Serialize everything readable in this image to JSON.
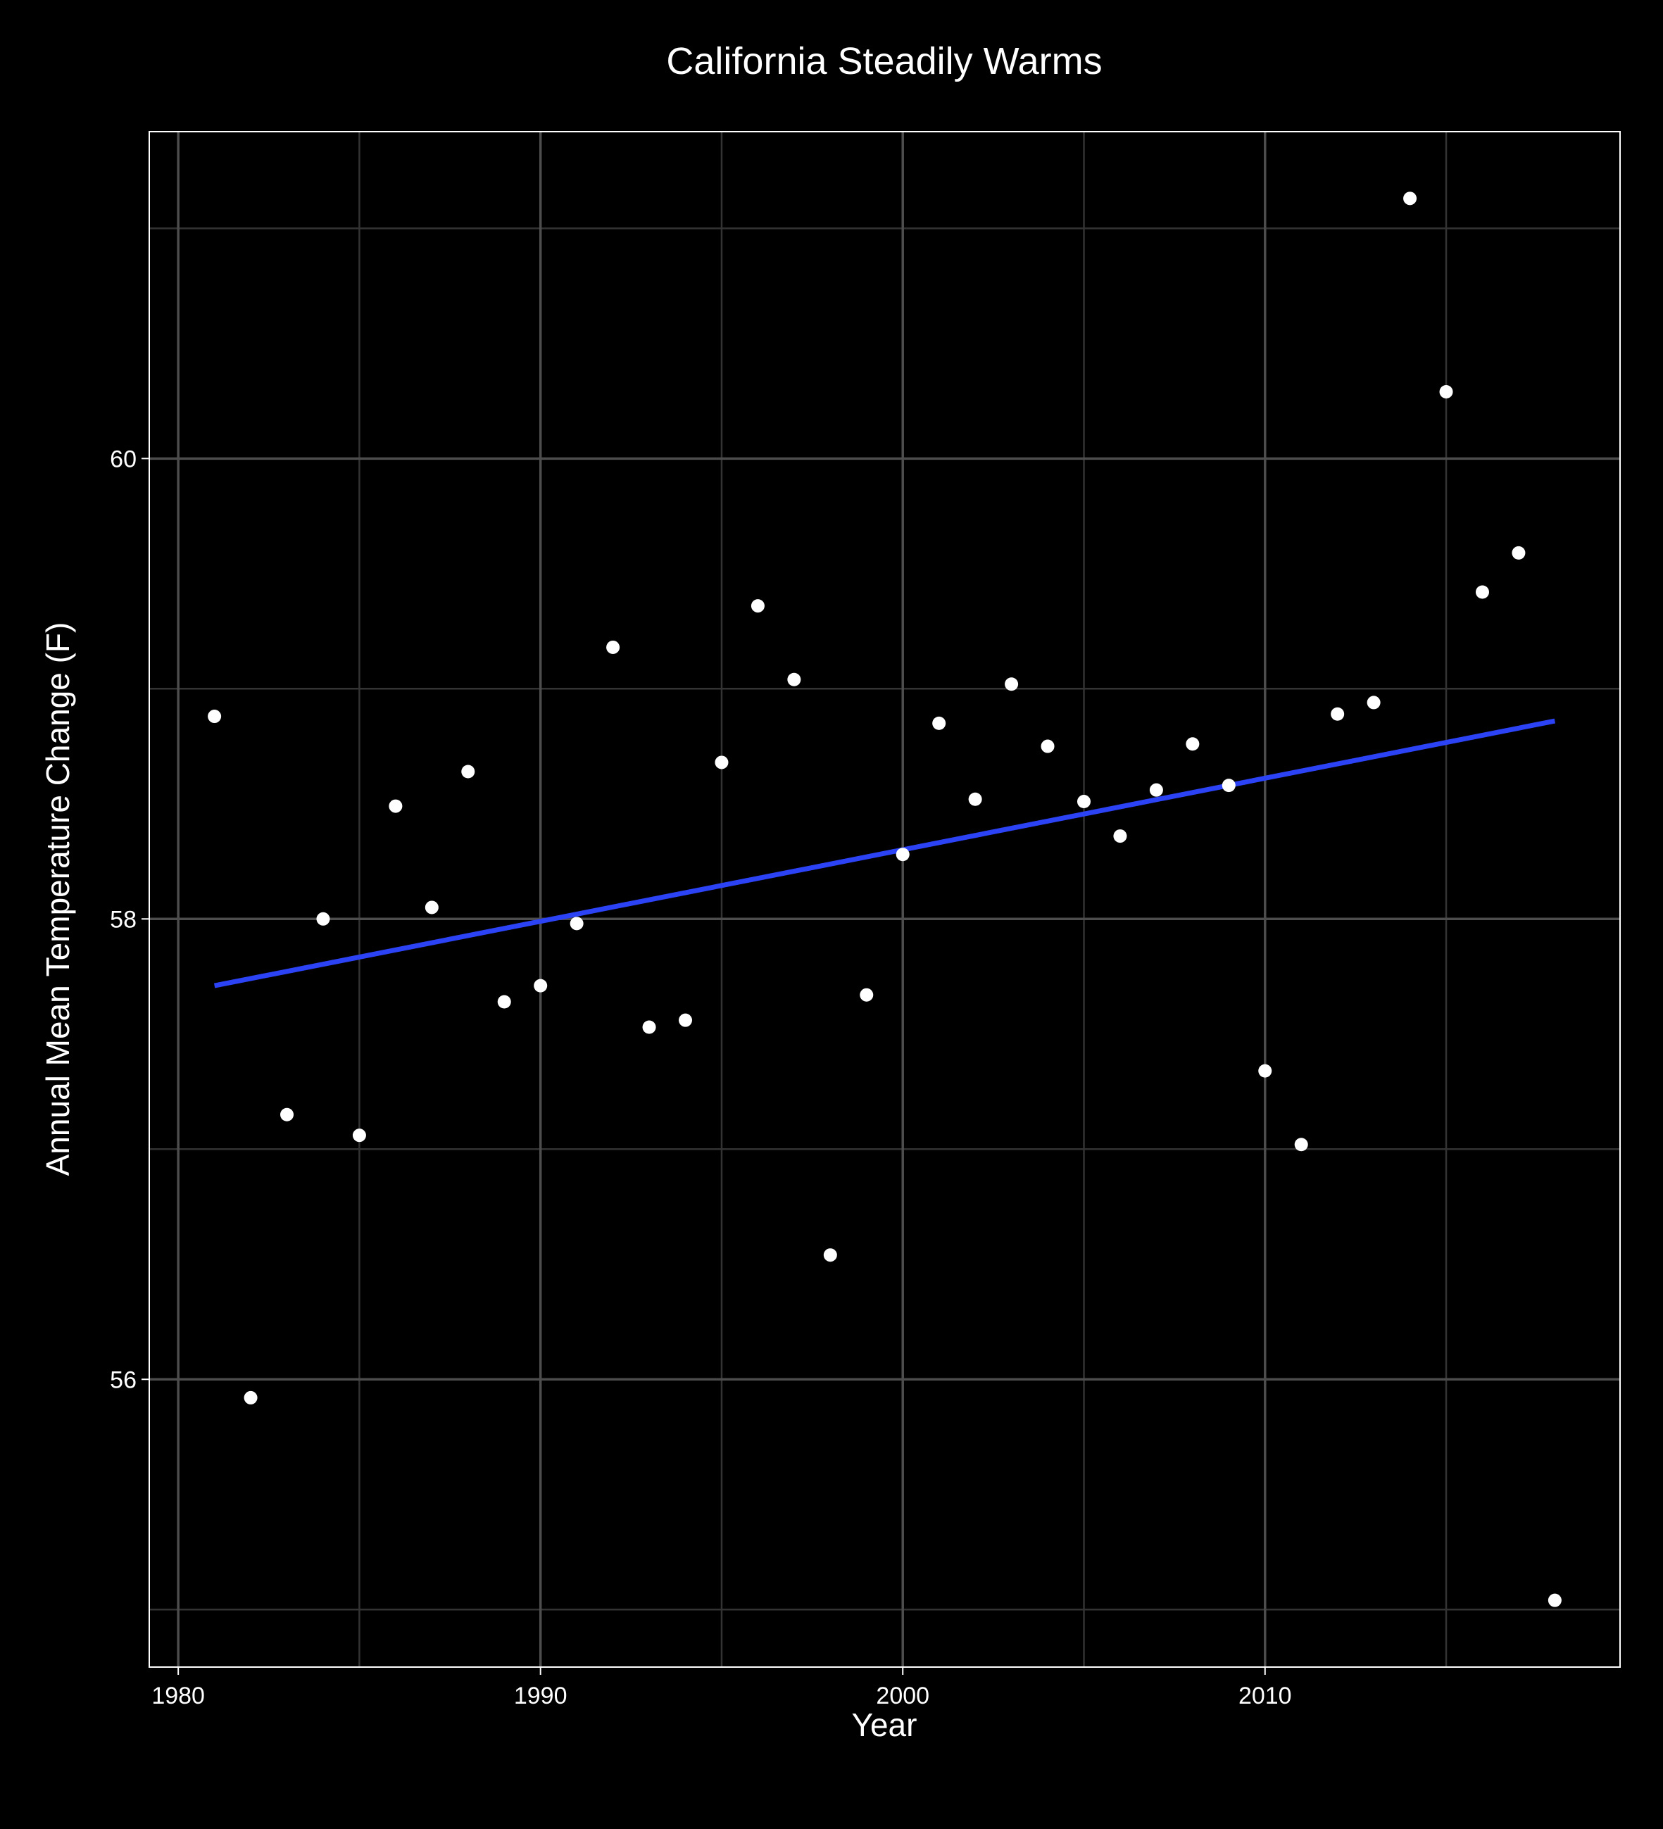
{
  "colors": {
    "background": "#000000",
    "panel_border": "#ffffff",
    "grid_major": "#4d4d4d",
    "grid_minor": "#333333",
    "text": "#ffffff",
    "points": "#ffffff",
    "trend_line": "#2c43f5"
  },
  "chart_data": {
    "type": "scatter",
    "title": "California Steadily Warms",
    "xlabel": "Year",
    "ylabel": "Annual Mean Temperature Change (F)",
    "xlim": [
      1979.2,
      2019.8
    ],
    "ylim": [
      54.75,
      61.42
    ],
    "x_ticks": [
      1980,
      1990,
      2000,
      2010
    ],
    "x_tick_labels": [
      "1980",
      "1990",
      "2000",
      "2010"
    ],
    "x_minor_ticks": [
      1985,
      1995,
      2005,
      2015
    ],
    "y_ticks": [
      56,
      58,
      60
    ],
    "y_tick_labels": [
      "56",
      "58",
      "60"
    ],
    "y_minor_ticks": [
      55,
      57,
      59,
      61
    ],
    "grid": true,
    "legend": "none",
    "series": [
      {
        "type": "scatter",
        "x": [
          1981,
          1982,
          1983,
          1984,
          1985,
          1986,
          1987,
          1988,
          1989,
          1990,
          1991,
          1992,
          1993,
          1994,
          1995,
          1996,
          1997,
          1998,
          1999,
          2000,
          2001,
          2002,
          2003,
          2004,
          2005,
          2006,
          2007,
          2008,
          2009,
          2010,
          2011,
          2012,
          2013,
          2014,
          2015,
          2016,
          2017,
          2018
        ],
        "y": [
          58.88,
          55.92,
          57.15,
          58.0,
          57.06,
          58.49,
          58.05,
          58.64,
          57.64,
          57.71,
          57.98,
          59.18,
          57.53,
          57.56,
          58.68,
          59.36,
          59.04,
          56.54,
          57.67,
          58.28,
          58.85,
          58.52,
          59.02,
          58.75,
          58.51,
          58.36,
          58.56,
          58.76,
          58.58,
          57.34,
          57.02,
          58.89,
          58.94,
          61.13,
          60.29,
          59.42,
          59.59,
          55.04
        ]
      },
      {
        "type": "line",
        "x": [
          1981,
          2018
        ],
        "y": [
          57.71,
          58.86
        ]
      }
    ]
  }
}
